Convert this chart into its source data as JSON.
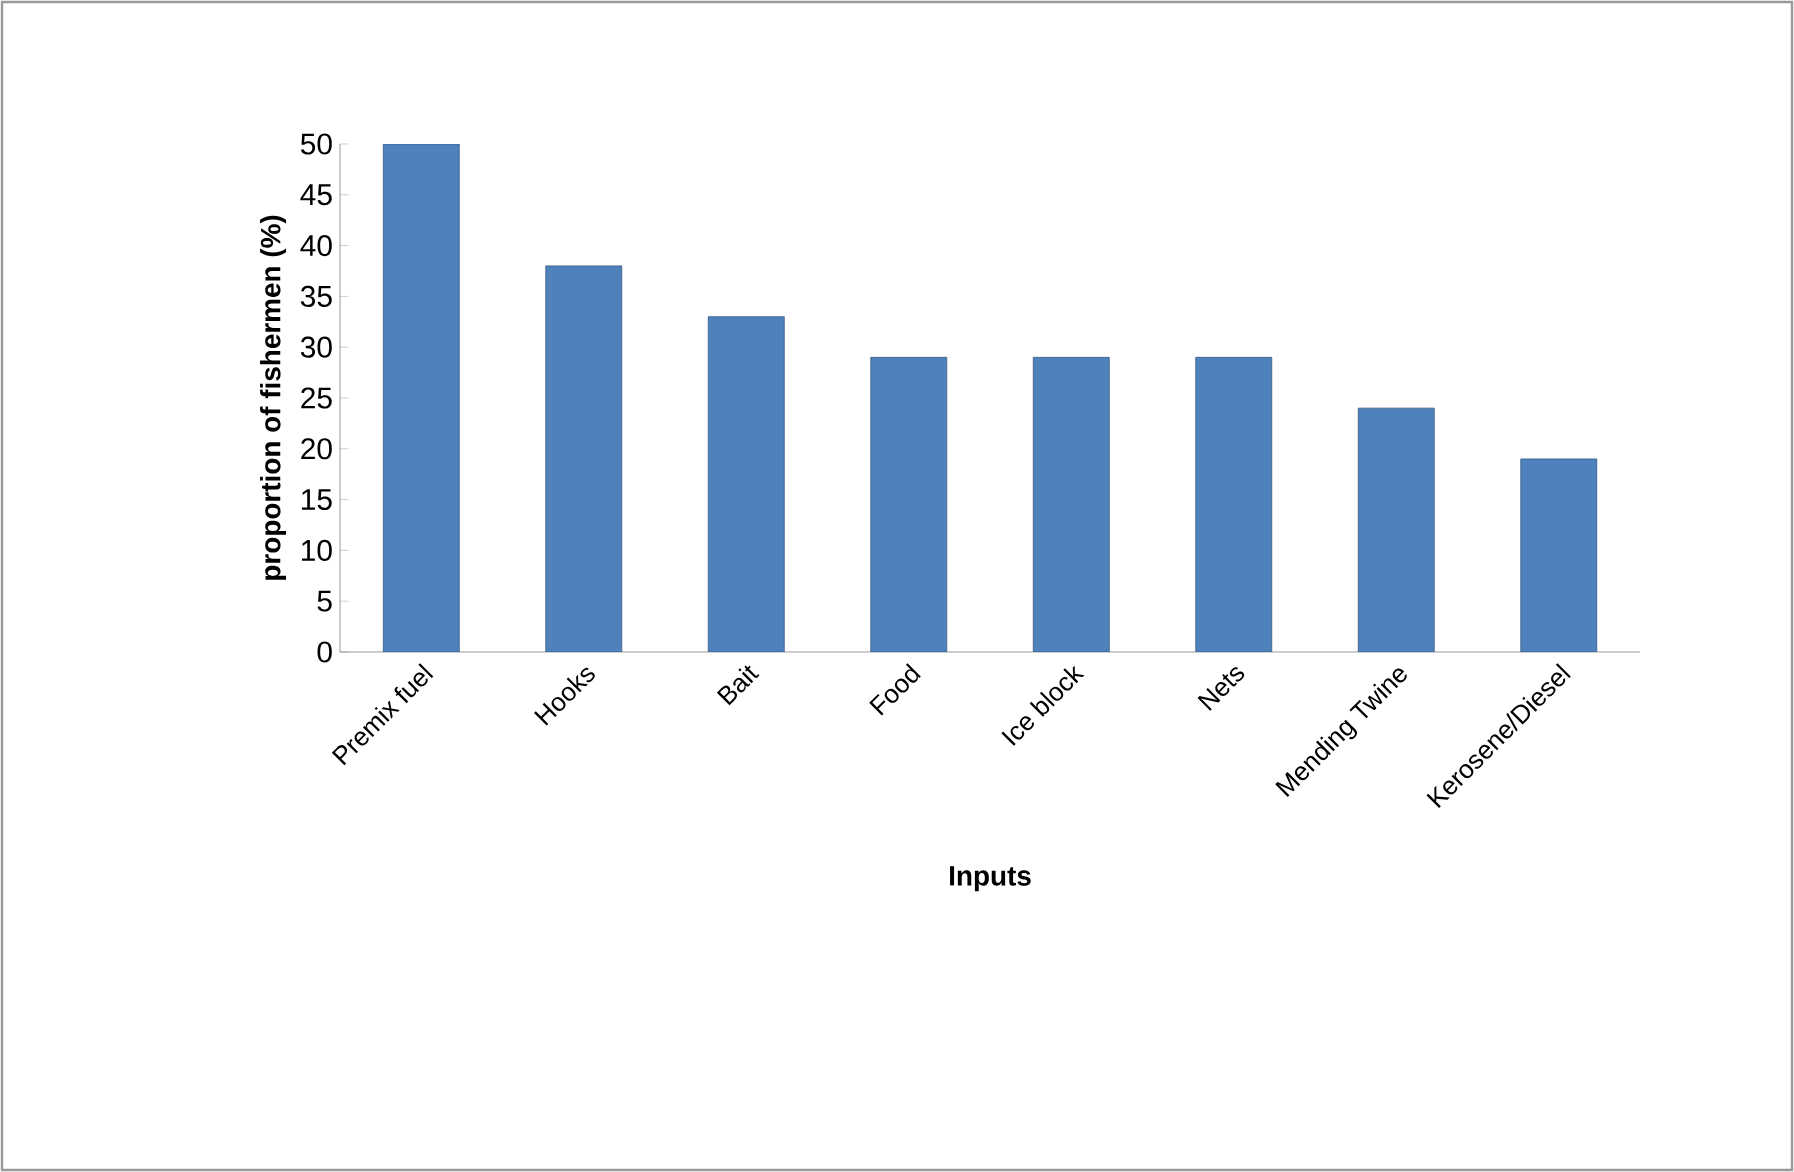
{
  "chart_data": {
    "type": "bar",
    "xlabel": "Inputs",
    "ylabel": "proportion of fishermen (%)",
    "categories": [
      "Premix fuel",
      "Hooks",
      "Bait",
      "Food",
      "Ice block",
      "Nets",
      "Mending Twine",
      "Kerosene/Diesel"
    ],
    "values": [
      50,
      38,
      33,
      29,
      29,
      29,
      24,
      19
    ],
    "color": "#4f81bd",
    "ylim": [
      0,
      50
    ],
    "yticks": [
      0,
      5,
      10,
      15,
      20,
      25,
      30,
      35,
      40,
      45,
      50
    ],
    "grid": false
  }
}
